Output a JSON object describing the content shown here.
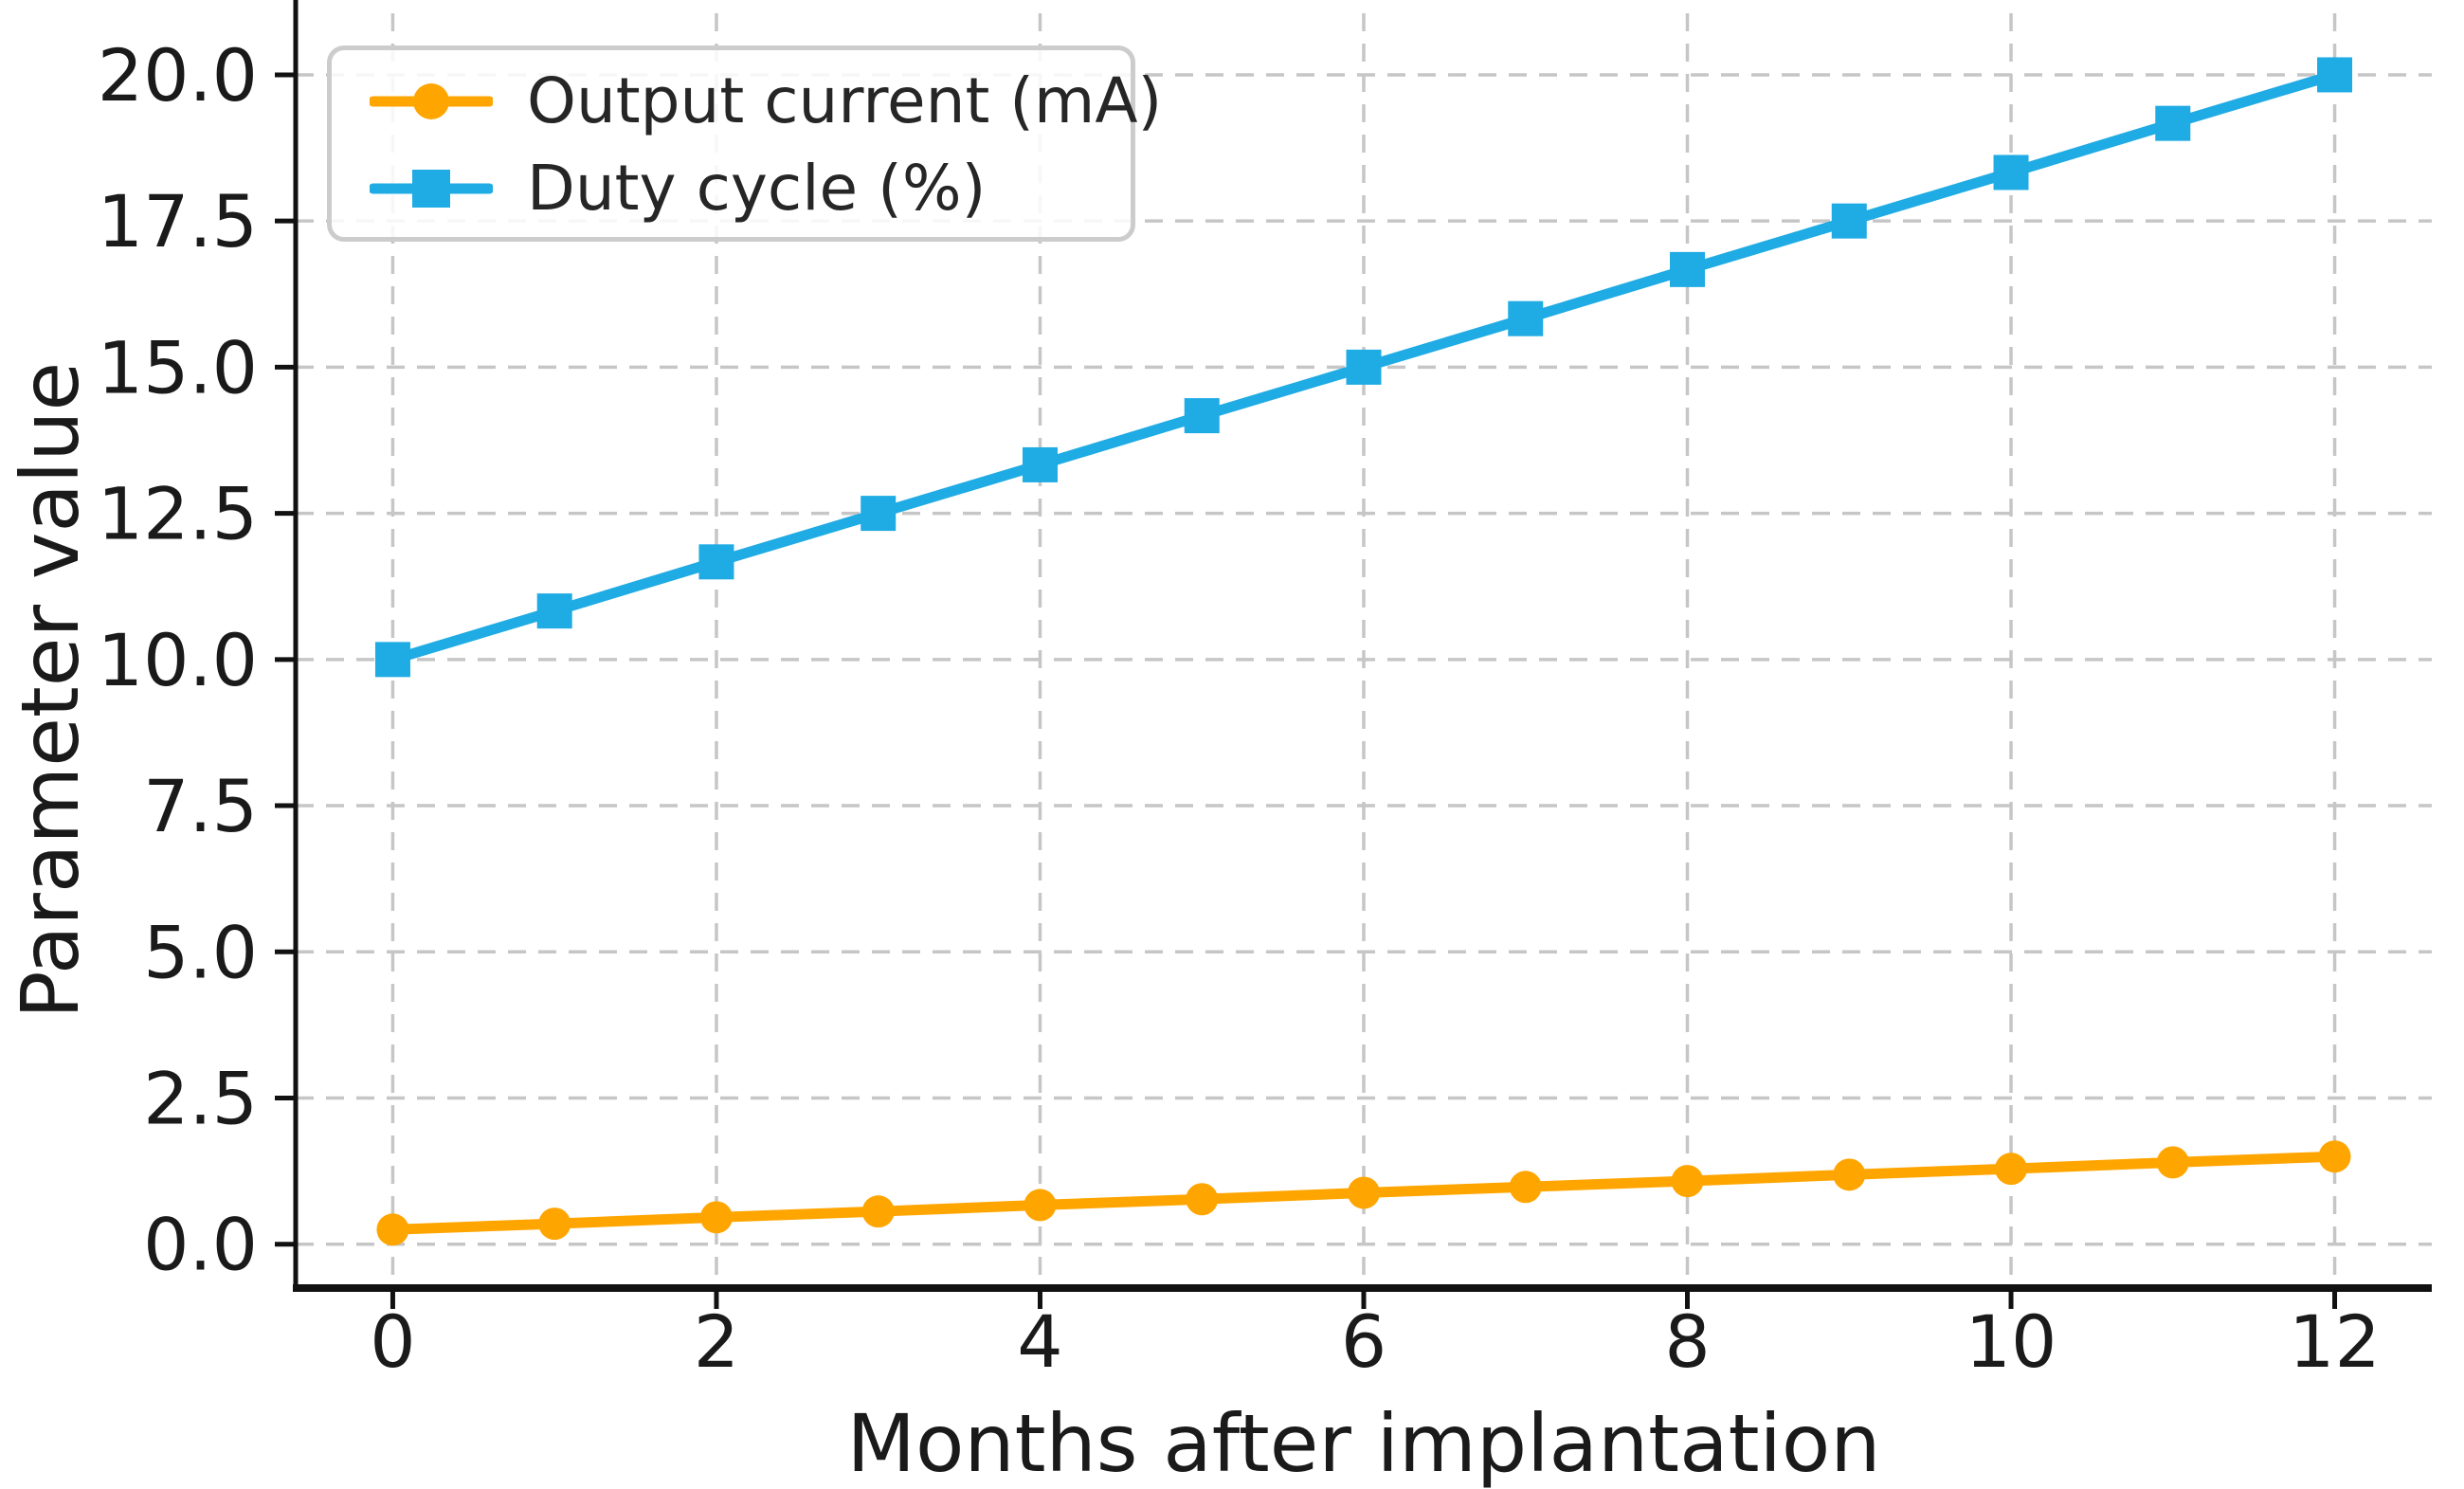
{
  "chart_data": {
    "type": "line",
    "title": "",
    "xlabel": "Months after implantation",
    "ylabel": "Parameter value",
    "x": [
      0,
      1,
      2,
      3,
      4,
      5,
      6,
      7,
      8,
      9,
      10,
      11,
      12
    ],
    "series": [
      {
        "name": "Output current (mA)",
        "marker": "circle",
        "color": "#FFA500",
        "values": [
          0.25,
          0.35,
          0.46,
          0.56,
          0.67,
          0.77,
          0.88,
          0.98,
          1.08,
          1.19,
          1.29,
          1.4,
          1.5
        ]
      },
      {
        "name": "Duty cycle (%)",
        "marker": "square",
        "color": "#1FABE4",
        "values": [
          10.0,
          10.83,
          11.67,
          12.5,
          13.33,
          14.17,
          15.0,
          15.83,
          16.67,
          17.5,
          18.33,
          19.17,
          20.0
        ]
      }
    ],
    "xticks": {
      "values": [
        0,
        2,
        4,
        6,
        8,
        10,
        12
      ],
      "labels": [
        "0",
        "2",
        "4",
        "6",
        "8",
        "10",
        "12"
      ]
    },
    "yticks": {
      "values": [
        0,
        2.5,
        5,
        7.5,
        10,
        12.5,
        15,
        17.5,
        20
      ],
      "labels": [
        "0.0",
        "2.5",
        "5.0",
        "7.5",
        "10.0",
        "12.5",
        "15.0",
        "17.5",
        "20.0"
      ]
    },
    "xlim": [
      -0.6,
      12.6
    ],
    "ylim": [
      -0.75,
      21.15
    ],
    "grid": true,
    "legend_position": "upper left"
  },
  "style_colors": {
    "grid": "#c6c6c6",
    "spine": "#111111",
    "tick": "#111111",
    "tick_label": "#1a1a1a",
    "axis_label": "#1a1a1a",
    "legend_border": "#cccccc",
    "legend_text": "#262626",
    "background": "#ffffff"
  }
}
